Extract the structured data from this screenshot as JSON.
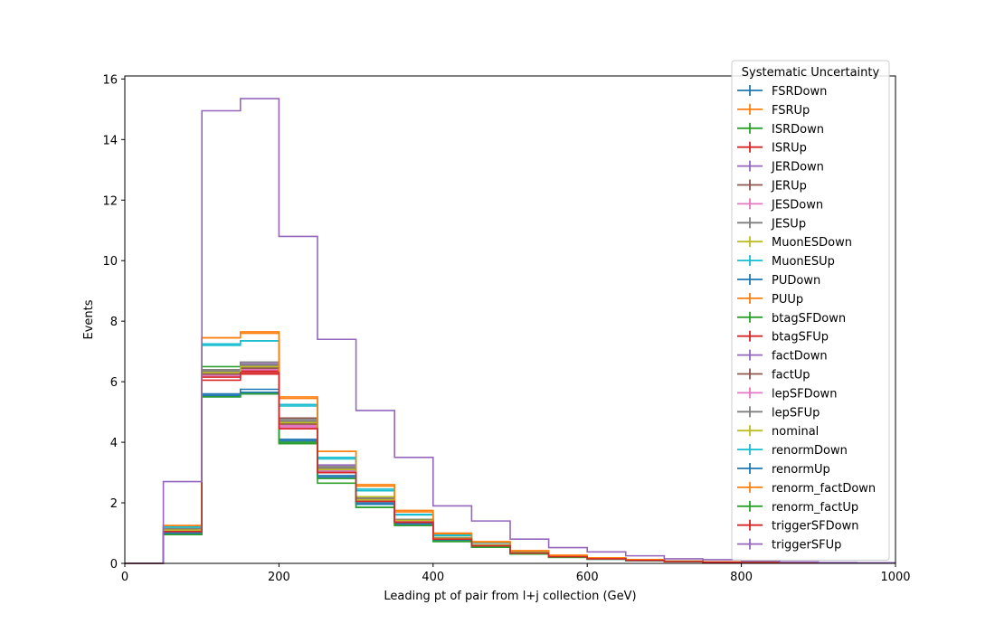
{
  "chart_data": {
    "type": "line",
    "style": "histogram-step",
    "xlabel": "Leading pt of pair from l+j collection (GeV)",
    "ylabel": "Events",
    "xlim": [
      0,
      1000
    ],
    "ylim": [
      0,
      16.1
    ],
    "xticks": [
      0,
      200,
      400,
      600,
      800,
      1000
    ],
    "yticks": [
      0,
      2,
      4,
      6,
      8,
      10,
      12,
      14,
      16
    ],
    "grid": false,
    "legend": {
      "title": "Systematic Uncertainty",
      "placement": "top-right"
    },
    "bin_edges": [
      0,
      50,
      100,
      150,
      200,
      250,
      300,
      350,
      400,
      450,
      500,
      550,
      600,
      650,
      700,
      750,
      800,
      850,
      900,
      950,
      1000
    ],
    "series": [
      {
        "name": "FSRDown",
        "color": "#1f77b4",
        "values": [
          0,
          1.0,
          5.6,
          5.75,
          4.1,
          3.0,
          2.0,
          1.35,
          0.8,
          0.6,
          0.35,
          0.22,
          0.15,
          0.1,
          0.06,
          0.04,
          0.03,
          0.02,
          0.015,
          0.01
        ]
      },
      {
        "name": "FSRUp",
        "color": "#ff7f0e",
        "values": [
          0,
          1.15,
          6.4,
          6.5,
          4.65,
          3.15,
          2.1,
          1.45,
          0.85,
          0.62,
          0.36,
          0.23,
          0.16,
          0.11,
          0.07,
          0.05,
          0.03,
          0.02,
          0.015,
          0.01
        ]
      },
      {
        "name": "ISRDown",
        "color": "#2ca02c",
        "values": [
          0,
          0.95,
          5.5,
          5.6,
          3.95,
          2.65,
          1.85,
          1.25,
          0.72,
          0.53,
          0.31,
          0.2,
          0.14,
          0.09,
          0.06,
          0.04,
          0.03,
          0.02,
          0.015,
          0.01
        ]
      },
      {
        "name": "ISRUp",
        "color": "#d62728",
        "values": [
          0,
          1.05,
          6.05,
          6.25,
          4.45,
          3.0,
          2.05,
          1.35,
          0.8,
          0.58,
          0.34,
          0.22,
          0.15,
          0.1,
          0.06,
          0.04,
          0.03,
          0.02,
          0.015,
          0.01
        ]
      },
      {
        "name": "JERDown",
        "color": "#9467bd",
        "values": [
          0,
          1.1,
          6.3,
          6.6,
          4.7,
          3.25,
          2.2,
          1.45,
          0.85,
          0.62,
          0.36,
          0.23,
          0.16,
          0.1,
          0.07,
          0.04,
          0.03,
          0.02,
          0.015,
          0.01
        ]
      },
      {
        "name": "JERUp",
        "color": "#8c564b",
        "values": [
          0,
          1.1,
          6.25,
          6.45,
          4.8,
          3.1,
          2.1,
          1.4,
          0.82,
          0.6,
          0.35,
          0.22,
          0.15,
          0.1,
          0.06,
          0.04,
          0.03,
          0.02,
          0.015,
          0.01
        ]
      },
      {
        "name": "JESDown",
        "color": "#e377c2",
        "values": [
          0,
          1.05,
          6.2,
          6.35,
          4.5,
          3.05,
          2.05,
          1.38,
          0.8,
          0.58,
          0.34,
          0.22,
          0.15,
          0.1,
          0.06,
          0.04,
          0.03,
          0.02,
          0.015,
          0.01
        ]
      },
      {
        "name": "JESUp",
        "color": "#7f7f7f",
        "values": [
          0,
          1.15,
          6.4,
          6.65,
          4.75,
          3.2,
          2.15,
          1.45,
          0.85,
          0.62,
          0.36,
          0.23,
          0.16,
          0.11,
          0.07,
          0.05,
          0.03,
          0.02,
          0.015,
          0.01
        ]
      },
      {
        "name": "MuonESDown",
        "color": "#bcbd22",
        "values": [
          0,
          1.1,
          6.35,
          6.55,
          4.6,
          3.15,
          2.2,
          1.45,
          0.85,
          0.6,
          0.35,
          0.23,
          0.15,
          0.1,
          0.06,
          0.04,
          0.03,
          0.02,
          0.015,
          0.01
        ]
      },
      {
        "name": "MuonESUp",
        "color": "#17becf",
        "values": [
          0,
          1.2,
          7.2,
          7.35,
          5.2,
          3.45,
          2.4,
          1.6,
          0.92,
          0.68,
          0.4,
          0.25,
          0.17,
          0.11,
          0.07,
          0.05,
          0.03,
          0.02,
          0.015,
          0.01
        ]
      },
      {
        "name": "PUDown",
        "color": "#1f77b4",
        "values": [
          0,
          1.0,
          5.55,
          5.6,
          4.0,
          2.85,
          1.95,
          1.3,
          0.75,
          0.55,
          0.33,
          0.21,
          0.14,
          0.09,
          0.06,
          0.04,
          0.03,
          0.02,
          0.015,
          0.01
        ]
      },
      {
        "name": "PUUp",
        "color": "#ff7f0e",
        "values": [
          0,
          1.25,
          7.45,
          7.65,
          5.5,
          3.7,
          2.6,
          1.75,
          1.0,
          0.72,
          0.42,
          0.27,
          0.18,
          0.12,
          0.08,
          0.05,
          0.03,
          0.02,
          0.015,
          0.01
        ]
      },
      {
        "name": "btagSFDown",
        "color": "#2ca02c",
        "values": [
          0,
          1.05,
          6.5,
          6.55,
          4.55,
          3.05,
          2.05,
          1.38,
          0.8,
          0.58,
          0.34,
          0.22,
          0.15,
          0.1,
          0.06,
          0.04,
          0.03,
          0.02,
          0.015,
          0.01
        ]
      },
      {
        "name": "btagSFUp",
        "color": "#d62728",
        "values": [
          0,
          1.1,
          6.3,
          6.35,
          4.6,
          3.1,
          2.1,
          1.42,
          0.82,
          0.6,
          0.35,
          0.22,
          0.15,
          0.1,
          0.06,
          0.04,
          0.03,
          0.02,
          0.015,
          0.01
        ]
      },
      {
        "name": "factDown",
        "color": "#9467bd",
        "values": [
          0,
          1.1,
          6.3,
          6.5,
          4.65,
          3.15,
          2.15,
          1.42,
          0.82,
          0.6,
          0.35,
          0.22,
          0.15,
          0.1,
          0.06,
          0.04,
          0.03,
          0.02,
          0.015,
          0.01
        ]
      },
      {
        "name": "factUp",
        "color": "#8c564b",
        "values": [
          0,
          1.1,
          6.25,
          6.45,
          4.6,
          3.1,
          2.1,
          1.4,
          0.8,
          0.58,
          0.34,
          0.22,
          0.15,
          0.1,
          0.06,
          0.04,
          0.03,
          0.02,
          0.015,
          0.01
        ]
      },
      {
        "name": "lepSFDown",
        "color": "#e377c2",
        "values": [
          0,
          1.05,
          6.2,
          6.4,
          4.55,
          3.05,
          2.05,
          1.38,
          0.8,
          0.58,
          0.34,
          0.22,
          0.15,
          0.1,
          0.06,
          0.04,
          0.03,
          0.02,
          0.015,
          0.01
        ]
      },
      {
        "name": "lepSFUp",
        "color": "#7f7f7f",
        "values": [
          0,
          1.1,
          6.35,
          6.55,
          4.7,
          3.15,
          2.15,
          1.45,
          0.84,
          0.61,
          0.36,
          0.23,
          0.16,
          0.1,
          0.07,
          0.04,
          0.03,
          0.02,
          0.015,
          0.01
        ]
      },
      {
        "name": "nominal",
        "color": "#bcbd22",
        "values": [
          0,
          1.1,
          6.3,
          6.5,
          4.65,
          3.1,
          2.1,
          1.42,
          0.82,
          0.6,
          0.35,
          0.22,
          0.15,
          0.1,
          0.06,
          0.04,
          0.03,
          0.02,
          0.015,
          0.01
        ]
      },
      {
        "name": "renormDown",
        "color": "#17becf",
        "values": [
          0,
          1.2,
          7.25,
          7.35,
          5.25,
          3.5,
          2.45,
          1.62,
          0.94,
          0.68,
          0.4,
          0.26,
          0.17,
          0.11,
          0.07,
          0.05,
          0.03,
          0.02,
          0.015,
          0.01
        ]
      },
      {
        "name": "renormUp",
        "color": "#1f77b4",
        "values": [
          0,
          1.0,
          5.5,
          5.65,
          4.05,
          2.9,
          1.95,
          1.3,
          0.76,
          0.55,
          0.33,
          0.21,
          0.14,
          0.09,
          0.06,
          0.04,
          0.03,
          0.02,
          0.015,
          0.01
        ]
      },
      {
        "name": "renorm_factDown",
        "color": "#ff7f0e",
        "values": [
          0,
          1.25,
          7.45,
          7.6,
          5.45,
          3.7,
          2.55,
          1.7,
          0.98,
          0.7,
          0.41,
          0.26,
          0.18,
          0.12,
          0.07,
          0.05,
          0.03,
          0.02,
          0.015,
          0.01
        ]
      },
      {
        "name": "renorm_factUp",
        "color": "#2ca02c",
        "values": [
          0,
          0.95,
          5.5,
          5.6,
          4.0,
          2.8,
          1.85,
          1.25,
          0.73,
          0.53,
          0.31,
          0.2,
          0.14,
          0.09,
          0.06,
          0.04,
          0.03,
          0.02,
          0.015,
          0.01
        ]
      },
      {
        "name": "triggerSFDown",
        "color": "#d62728",
        "values": [
          0,
          1.05,
          6.15,
          6.3,
          4.45,
          3.0,
          2.05,
          1.36,
          0.8,
          0.58,
          0.34,
          0.22,
          0.15,
          0.1,
          0.06,
          0.04,
          0.03,
          0.02,
          0.015,
          0.01
        ]
      },
      {
        "name": "triggerSFUp",
        "color": "#9467bd",
        "values": [
          0,
          2.7,
          14.95,
          15.35,
          10.8,
          7.4,
          5.05,
          3.5,
          1.9,
          1.4,
          0.8,
          0.52,
          0.38,
          0.25,
          0.15,
          0.12,
          0.08,
          0.05,
          0.03,
          0.02
        ]
      }
    ]
  }
}
